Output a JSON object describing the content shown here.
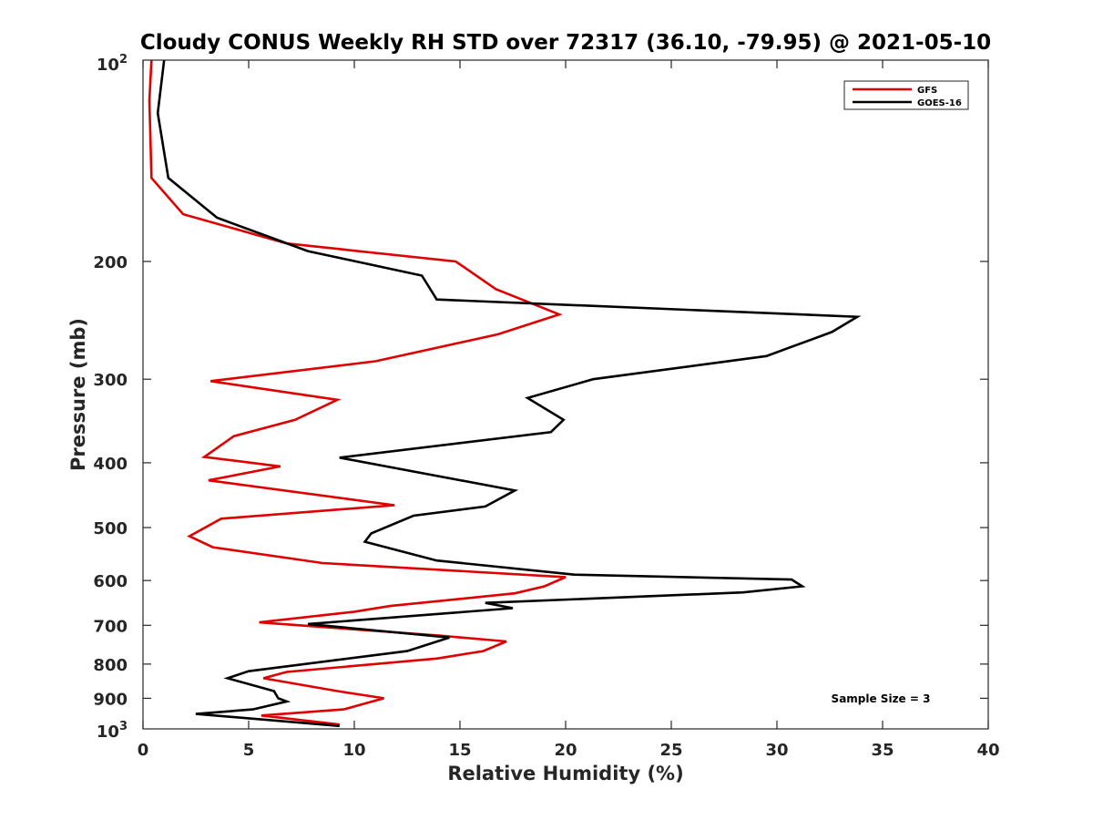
{
  "chart_data": {
    "type": "line",
    "title": "Cloudy CONUS Weekly RH STD over 72317 (36.10, -79.95) @ 2021-05-10",
    "xlabel": "Relative Humidity (%)",
    "ylabel": "Pressure (mb)",
    "xlim": [
      0,
      40
    ],
    "ylim": [
      100,
      1000
    ],
    "y_scale": "log",
    "y_reversed": true,
    "x_ticks": [
      0,
      5,
      10,
      15,
      20,
      25,
      30,
      35,
      40
    ],
    "y_ticks": [
      200,
      300,
      400,
      500,
      600,
      700,
      800,
      900
    ],
    "y_tick_labels": [
      "200",
      "300",
      "400",
      "500",
      "600",
      "700",
      "800",
      "900"
    ],
    "y_top_label": "10",
    "y_top_exponent": "2",
    "y_bottom_label": "10",
    "y_bottom_exponent": "3",
    "grid": false,
    "legend_position": "top-right",
    "annotation": "Sample Size = 3",
    "series": [
      {
        "name": "GFS",
        "color": "#e00000",
        "points": [
          [
            0.4,
            100
          ],
          [
            0.3,
            115
          ],
          [
            0.35,
            130
          ],
          [
            0.4,
            150
          ],
          [
            1.9,
            170
          ],
          [
            6.8,
            188
          ],
          [
            14.8,
            200
          ],
          [
            16.7,
            220
          ],
          [
            19.7,
            240
          ],
          [
            16.8,
            257
          ],
          [
            11.0,
            282
          ],
          [
            3.2,
            302
          ],
          [
            9.2,
            322
          ],
          [
            7.2,
            345
          ],
          [
            4.3,
            365
          ],
          [
            2.9,
            392
          ],
          [
            6.5,
            405
          ],
          [
            3.1,
            425
          ],
          [
            11.9,
            463
          ],
          [
            3.7,
            485
          ],
          [
            2.2,
            515
          ],
          [
            3.3,
            535
          ],
          [
            8.5,
            565
          ],
          [
            20.0,
            593
          ],
          [
            19.0,
            612
          ],
          [
            17.6,
            627
          ],
          [
            11.7,
            655
          ],
          [
            10.0,
            668
          ],
          [
            5.5,
            693
          ],
          [
            14.0,
            725
          ],
          [
            17.2,
            740
          ],
          [
            16.1,
            765
          ],
          [
            13.9,
            785
          ],
          [
            6.8,
            822
          ],
          [
            5.7,
            840
          ],
          [
            9.2,
            878
          ],
          [
            11.4,
            900
          ],
          [
            9.5,
            935
          ],
          [
            5.6,
            955
          ],
          [
            9.3,
            985
          ]
        ]
      },
      {
        "name": "GOES-16",
        "color": "#000000",
        "points": [
          [
            1.0,
            100
          ],
          [
            0.7,
            120
          ],
          [
            1.2,
            150
          ],
          [
            3.5,
            172
          ],
          [
            7.8,
            193
          ],
          [
            13.2,
            210
          ],
          [
            13.9,
            228
          ],
          [
            33.8,
            242
          ],
          [
            32.6,
            255
          ],
          [
            29.5,
            277
          ],
          [
            21.3,
            300
          ],
          [
            18.2,
            320
          ],
          [
            19.9,
            345
          ],
          [
            19.3,
            360
          ],
          [
            9.3,
            393
          ],
          [
            17.6,
            440
          ],
          [
            16.2,
            465
          ],
          [
            12.8,
            480
          ],
          [
            10.8,
            510
          ],
          [
            10.5,
            525
          ],
          [
            13.9,
            560
          ],
          [
            20.4,
            588
          ],
          [
            30.7,
            598
          ],
          [
            31.2,
            612
          ],
          [
            28.4,
            625
          ],
          [
            16.2,
            648
          ],
          [
            17.5,
            660
          ],
          [
            7.8,
            697
          ],
          [
            14.5,
            730
          ],
          [
            12.5,
            765
          ],
          [
            5.0,
            820
          ],
          [
            4.0,
            840
          ],
          [
            6.2,
            878
          ],
          [
            6.4,
            900
          ],
          [
            6.8,
            910
          ],
          [
            5.2,
            935
          ],
          [
            2.5,
            950
          ],
          [
            9.3,
            990
          ]
        ]
      }
    ]
  }
}
